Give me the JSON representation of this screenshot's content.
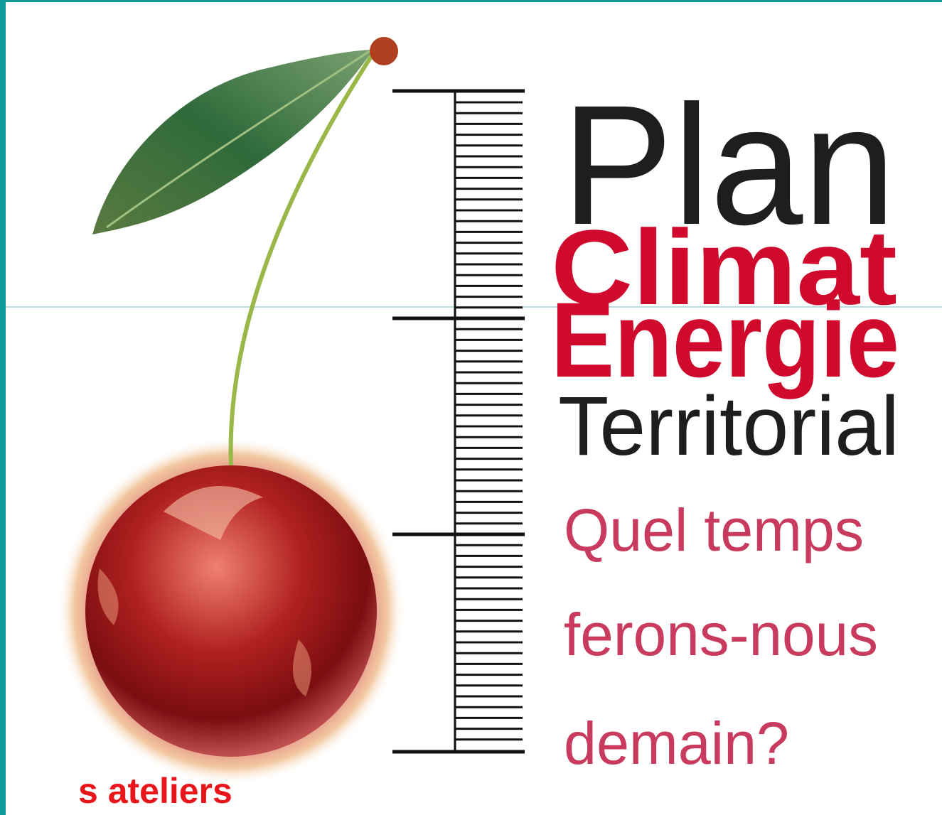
{
  "logo": {
    "title": {
      "line1": "Plan",
      "line2": "Climat",
      "line3": "Energie",
      "line4": "Territorial"
    },
    "tagline": [
      "Quel temps",
      "ferons-nous",
      "demain?"
    ]
  },
  "link": {
    "text": "s ateliers"
  }
}
